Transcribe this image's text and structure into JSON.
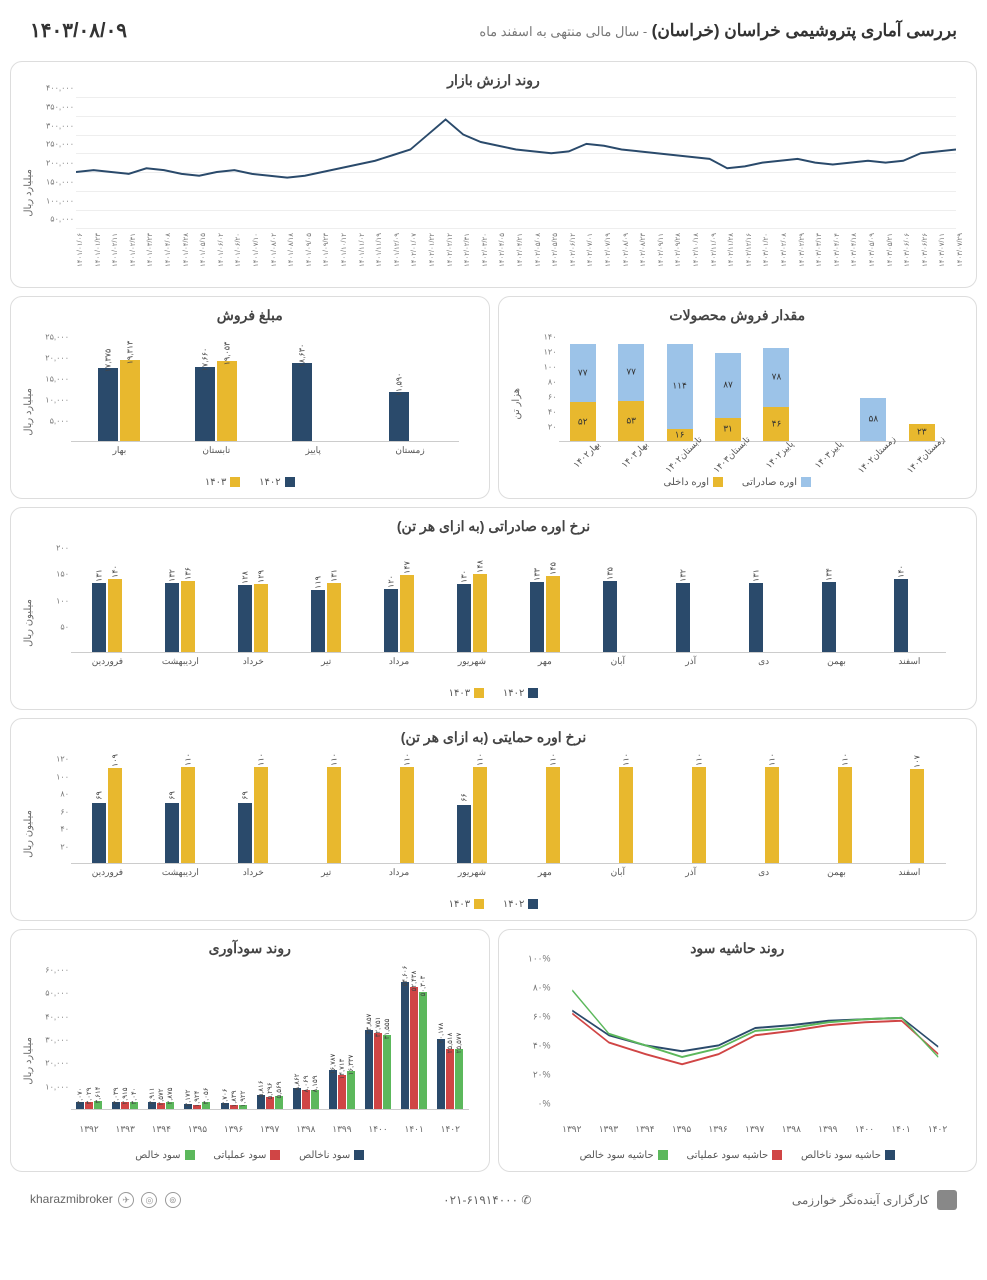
{
  "header": {
    "title": "بررسی آماری پتروشیمی خراسان (خراسان)",
    "subtitle": "- سال مالی منتهی به اسفند ماه",
    "date": "۱۴۰۳/۰۸/۰۹"
  },
  "colors": {
    "navy": "#2a4a6b",
    "yellow": "#e8b82e",
    "lightblue": "#9cc3e8",
    "red": "#d04545",
    "green": "#5cb85c",
    "grid": "#eeeeee",
    "border": "#dddddd"
  },
  "market_value": {
    "title": "روند ارزش بازار",
    "ylabel": "میلیارد ریال",
    "ymin": 0,
    "ymax": 400000,
    "ystep": 50000,
    "yticks": [
      "۵۰,۰۰۰",
      "۱۰۰,۰۰۰",
      "۱۵۰,۰۰۰",
      "۲۰۰,۰۰۰",
      "۲۵۰,۰۰۰",
      "۳۰۰,۰۰۰",
      "۳۵۰,۰۰۰",
      "۴۰۰,۰۰۰"
    ],
    "xticks": [
      "۱۴۰۱/۰۱/۰۶",
      "۱۴۰۱/۰۱/۲۳",
      "۱۴۰۱/۰۲/۱۱",
      "۱۴۰۱/۰۲/۳۱",
      "۱۴۰۱/۰۳/۲۳",
      "۱۴۰۱/۰۴/۰۸",
      "۱۴۰۱/۰۴/۲۸",
      "۱۴۰۱/۰۵/۱۵",
      "۱۴۰۱/۰۶/۰۲",
      "۱۴۰۱/۰۶/۲۰",
      "۱۴۰۱/۰۷/۱۰",
      "۱۴۰۱/۰۸/۰۲",
      "۱۴۰۱/۰۸/۱۸",
      "۱۴۰۱/۰۹/۰۵",
      "۱۴۰۱/۰۹/۲۳",
      "۱۴۰۱/۱۰/۱۲",
      "۱۴۰۱/۱۱/۰۲",
      "۱۴۰۱/۱۱/۱۹",
      "۱۴۰۱/۱۲/۰۹",
      "۱۴۰۲/۰۱/۰۷",
      "۱۴۰۲/۰۱/۲۲",
      "۱۴۰۲/۰۲/۱۲",
      "۱۴۰۲/۰۲/۳۱",
      "۱۴۰۲/۰۳/۲۰",
      "۱۴۰۲/۰۴/۰۵",
      "۱۴۰۲/۰۴/۲۱",
      "۱۴۰۲/۰۵/۰۸",
      "۱۴۰۲/۰۵/۲۵",
      "۱۴۰۲/۰۶/۱۲",
      "۱۴۰۲/۰۷/۰۱",
      "۱۴۰۲/۰۷/۱۹",
      "۱۴۰۲/۰۸/۰۹",
      "۱۴۰۲/۰۸/۲۳",
      "۱۴۰۲/۰۹/۱۱",
      "۱۴۰۲/۰۹/۲۸",
      "۱۴۰۲/۱۰/۱۸",
      "۱۴۰۲/۱۱/۰۹",
      "۱۴۰۲/۱۱/۲۸",
      "۱۴۰۲/۱۲/۱۶",
      "۱۴۰۳/۰۱/۲۰",
      "۱۴۰۳/۰۲/۰۸",
      "۱۴۰۳/۰۲/۲۹",
      "۱۴۰۳/۰۳/۱۳",
      "۱۴۰۳/۰۴/۰۴",
      "۱۴۰۳/۰۴/۱۸",
      "۱۴۰۳/۰۵/۰۹",
      "۱۴۰۳/۰۵/۲۱",
      "۱۴۰۳/۰۶/۰۶",
      "۱۴۰۳/۰۶/۲۶",
      "۱۴۰۳/۰۷/۱۱",
      "۱۴۰۳/۰۷/۲۹"
    ],
    "values": [
      200000,
      205000,
      200000,
      195000,
      210000,
      205000,
      195000,
      190000,
      200000,
      205000,
      195000,
      190000,
      185000,
      190000,
      200000,
      210000,
      220000,
      230000,
      245000,
      260000,
      300000,
      340000,
      300000,
      280000,
      270000,
      260000,
      255000,
      250000,
      255000,
      275000,
      270000,
      260000,
      255000,
      250000,
      245000,
      240000,
      235000,
      210000,
      215000,
      225000,
      230000,
      235000,
      225000,
      220000,
      225000,
      230000,
      225000,
      230000,
      250000,
      255000,
      260000
    ]
  },
  "sales_volume": {
    "title": "مقدار فروش محصولات",
    "ylabel": "هزار تن",
    "ymax": 140,
    "ystep": 20,
    "yticks": [
      "۲۰",
      "۴۰",
      "۶۰",
      "۸۰",
      "۱۰۰",
      "۱۲۰",
      "۱۴۰"
    ],
    "categories": [
      "بهار۱۴۰۲",
      "بهار۱۴۰۳",
      "تابستان۱۴۰۲",
      "تابستان۱۴۰۳",
      "پاییز۱۴۰۲",
      "پاییز۱۴۰۳",
      "زمستان۱۴۰۲",
      "زمستان۱۴۰۳"
    ],
    "domestic": [
      52,
      53,
      16,
      31,
      46,
      null,
      null,
      23
    ],
    "export": [
      77,
      77,
      114,
      87,
      78,
      null,
      58,
      null
    ],
    "domestic_labels": [
      "۵۲",
      "۵۳",
      "۱۶",
      "۳۱",
      "۴۶",
      "",
      "",
      "۲۳"
    ],
    "export_labels": [
      "۷۷",
      "۷۷",
      "۱۱۴",
      "۸۷",
      "۷۸",
      "",
      "۵۸",
      ""
    ],
    "legend": {
      "domestic": "اوره داخلی",
      "export": "اوره صادراتی"
    }
  },
  "sales_amount": {
    "title": "مبلغ فروش",
    "ylabel": "میلیارد ریال",
    "ymax": 25000,
    "ystep": 5000,
    "yticks": [
      "۵,۰۰۰",
      "۱۰,۰۰۰",
      "۱۵,۰۰۰",
      "۲۰,۰۰۰",
      "۲۵,۰۰۰"
    ],
    "categories": [
      "بهار",
      "تابستان",
      "پاییز",
      "زمستان"
    ],
    "y1402": [
      17375,
      17660,
      18630,
      11590
    ],
    "y1403": [
      19313,
      19053,
      null,
      null
    ],
    "y1402_labels": [
      "۱۷,۳۷۵",
      "۱۷,۶۶۰",
      "۱۸,۶۳۰",
      "۱۱,۵۹۰"
    ],
    "y1403_labels": [
      "۱۹,۳۱۳",
      "۱۹,۰۵۳",
      "",
      ""
    ],
    "legend": {
      "y1402": "۱۴۰۲",
      "y1403": "۱۴۰۳"
    }
  },
  "export_rate": {
    "title": "نرخ اوره صادراتی (به ازای هر تن)",
    "ylabel": "میلیون ریال",
    "ymax": 200,
    "ystep": 50,
    "yticks": [
      "۵۰",
      "۱۰۰",
      "۱۵۰",
      "۲۰۰"
    ],
    "months": [
      "فروردین",
      "اردیبهشت",
      "خرداد",
      "تیر",
      "مرداد",
      "شهریور",
      "مهر",
      "آبان",
      "آذر",
      "دی",
      "بهمن",
      "اسفند"
    ],
    "y1402": [
      131,
      132,
      128,
      119,
      120,
      130,
      133,
      135,
      132,
      131,
      134,
      140
    ],
    "y1403": [
      140,
      136,
      129,
      131,
      147,
      148,
      145,
      null,
      null,
      null,
      null,
      null
    ],
    "y1402_labels": [
      "۱۳۱",
      "۱۳۲",
      "۱۲۸",
      "۱۱۹",
      "۱۲۰",
      "۱۳۰",
      "۱۳۳",
      "۱۳۵",
      "۱۳۲",
      "۱۳۱",
      "۱۳۴",
      "۱۴۰"
    ],
    "y1403_labels": [
      "۱۴۰",
      "۱۳۶",
      "۱۲۹",
      "۱۳۱",
      "۱۴۷",
      "۱۴۸",
      "۱۴۵",
      "",
      "",
      "",
      "",
      ""
    ],
    "legend": {
      "y1402": "۱۴۰۲",
      "y1403": "۱۴۰۳"
    }
  },
  "support_rate": {
    "title": "نرخ اوره حمایتی (به ازای هر تن)",
    "ylabel": "میلیون ریال",
    "ymax": 120,
    "ystep": 20,
    "yticks": [
      "۲۰",
      "۴۰",
      "۶۰",
      "۸۰",
      "۱۰۰",
      "۱۲۰"
    ],
    "months": [
      "فروردین",
      "اردیبهشت",
      "خرداد",
      "تیر",
      "مرداد",
      "شهریور",
      "مهر",
      "آبان",
      "آذر",
      "دی",
      "بهمن",
      "اسفند"
    ],
    "y1402": [
      69,
      69,
      69,
      null,
      null,
      66,
      null,
      null,
      null,
      null,
      null,
      null
    ],
    "y1403": [
      109,
      110,
      110,
      110,
      110,
      110,
      110,
      110,
      110,
      110,
      110,
      107
    ],
    "y1402_labels": [
      "۶۹",
      "۶۹",
      "۶۹",
      "",
      "",
      "۶۶",
      "",
      "",
      "",
      "",
      "",
      ""
    ],
    "y1403_labels": [
      "۱۰۹",
      "۱۱۰",
      "۱۱۰",
      "۱۱۰",
      "۱۱۰",
      "۱۱۰",
      "۱۱۰",
      "۱۱۰",
      "۱۱۰",
      "۱۱۰",
      "۱۱۰",
      "۱۰۷"
    ],
    "legend": {
      "y1402": "۱۴۰۲",
      "y1403": "۱۴۰۳"
    }
  },
  "margin_trend": {
    "title": "روند حاشیه سود",
    "ymax": 100,
    "ystep": 20,
    "yticks": [
      "۰%",
      "۲۰%",
      "۴۰%",
      "۶۰%",
      "۸۰%",
      "۱۰۰%"
    ],
    "years": [
      "۱۳۹۲",
      "۱۳۹۳",
      "۱۳۹۴",
      "۱۳۹۵",
      "۱۳۹۶",
      "۱۳۹۷",
      "۱۳۹۸",
      "۱۳۹۹",
      "۱۴۰۰",
      "۱۴۰۱",
      "۱۴۰۲"
    ],
    "gross": [
      72,
      55,
      48,
      44,
      48,
      60,
      62,
      65,
      66,
      67,
      47
    ],
    "operating": [
      70,
      50,
      42,
      35,
      42,
      55,
      58,
      62,
      64,
      65,
      42
    ],
    "net": [
      86,
      56,
      48,
      40,
      46,
      58,
      60,
      64,
      66,
      67,
      40
    ],
    "legend": {
      "gross": "حاشیه سود ناخالص",
      "operating": "حاشیه سود عملیاتی",
      "net": "حاشیه سود خالص"
    }
  },
  "profit_trend": {
    "title": "روند سودآوری",
    "ylabel": "میلیارد ریال",
    "ymax": 60000,
    "ystep": 10000,
    "yticks": [
      "۱۰,۰۰۰",
      "۲۰,۰۰۰",
      "۳۰,۰۰۰",
      "۴۰,۰۰۰",
      "۵۰,۰۰۰",
      "۶۰,۰۰۰"
    ],
    "years": [
      "۱۳۹۲",
      "۱۳۹۳",
      "۱۳۹۴",
      "۱۳۹۵",
      "۱۳۹۶",
      "۱۳۹۷",
      "۱۳۹۸",
      "۱۳۹۹",
      "۱۴۰۰",
      "۱۴۰۱",
      "۱۴۰۲"
    ],
    "gross": [
      3070,
      3039,
      2911,
      2172,
      2706,
      5816,
      8862,
      16787,
      33857,
      54606,
      30178
    ],
    "operating": [
      3029,
      2915,
      2572,
      1924,
      1839,
      5296,
      8069,
      14713,
      32751,
      52438,
      25518
    ],
    "net": [
      3614,
      3040,
      2875,
      3056,
      1922,
      5569,
      8159,
      16337,
      31555,
      50303,
      25577
    ],
    "gross_labels": [
      "۳,۰۷۰",
      "۳,۰۳۹",
      "۲,۹۱۱",
      "۲,۱۷۲",
      "۲,۷۰۶",
      "۵,۸۱۶",
      "۸,۸۶۲",
      "۱۶,۷۸۷",
      "۳۳,۸۵۷",
      "۵۴,۶۰۶",
      "۳۰,۱۷۸"
    ],
    "operating_labels": [
      "۳,۰۲۹",
      "۲,۹۱۵",
      "۲,۵۷۲",
      "۱,۹۲۴",
      "۱,۸۳۹",
      "۵,۲۹۶",
      "۸,۰۶۹",
      "۱۴,۷۱۳",
      "۳۲,۷۵۱",
      "۵۲,۴۳۸",
      "۲۵,۵۱۸"
    ],
    "net_labels": [
      "۳,۶۱۴",
      "۳,۰۴۰",
      "۲,۸۷۵",
      "۳,۰۵۶",
      "۱,۹۲۲",
      "۵,۵۶۹",
      "۸,۱۵۹",
      "۱۶,۳۳۷",
      "۳۱,۵۵۵",
      "۵۰,۳۰۳",
      "۲۵,۵۷۷"
    ],
    "legend": {
      "gross": "سود ناخالص",
      "operating": "سود عملیاتی",
      "net": "سود خالص"
    }
  },
  "footer": {
    "company": "کارگزاری آینده‌نگر خوارزمی",
    "phone": "۰۲۱-۶۱۹۱۴۰۰۰",
    "handle": "kharazmibroker"
  }
}
